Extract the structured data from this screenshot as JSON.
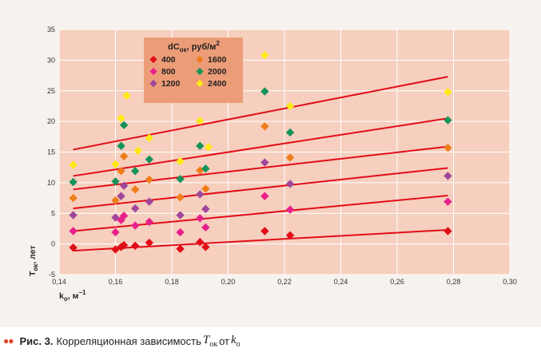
{
  "chart_data": {
    "type": "scatter",
    "title": "",
    "xlabel": "k",
    "xlabel_sub": "о",
    "xlabel_unit": ", м",
    "xlabel_sup": "−1",
    "ylabel": "Т",
    "ylabel_sub": "ок",
    "ylabel_unit": ", лет",
    "xlim": [
      0.14,
      0.3
    ],
    "ylim": [
      -5,
      35
    ],
    "xticks": [
      "0,14",
      "0,16",
      "0,18",
      "0,20",
      "0,22",
      "0,24",
      "0,26",
      "0,28",
      "0,30"
    ],
    "xtick_values": [
      0.14,
      0.16,
      0.18,
      0.2,
      0.22,
      0.24,
      0.26,
      0.28,
      0.3
    ],
    "yticks": [
      "-5",
      "0",
      "5",
      "10",
      "15",
      "20",
      "25",
      "30",
      "35"
    ],
    "ytick_values": [
      -5,
      0,
      5,
      10,
      15,
      20,
      25,
      30,
      35
    ],
    "grid": true,
    "legend_position": "top-left",
    "legend": {
      "title": "dC",
      "title_sub": "ок",
      "title_unit": ", руб/м",
      "title_sup": "2"
    },
    "series": [
      {
        "name": "400",
        "color": "#e10d17",
        "x": [
          0.145,
          0.16,
          0.162,
          0.163,
          0.167,
          0.172,
          0.183,
          0.19,
          0.192,
          0.213,
          0.222,
          0.278
        ],
        "y": [
          -0.6,
          -0.9,
          -0.5,
          -0.2,
          -0.3,
          0.2,
          -0.8,
          0.3,
          -0.5,
          2.1,
          1.4,
          2.1
        ],
        "trend": [
          -1.1,
          2.3
        ]
      },
      {
        "name": "800",
        "color": "#e8208c",
        "x": [
          0.145,
          0.16,
          0.162,
          0.163,
          0.167,
          0.172,
          0.183,
          0.19,
          0.192,
          0.213,
          0.222,
          0.278
        ],
        "y": [
          2.1,
          1.9,
          3.9,
          4.6,
          3.0,
          3.6,
          1.9,
          4.2,
          2.7,
          7.8,
          5.6,
          6.9
        ],
        "trend": [
          2.1,
          7.9
        ]
      },
      {
        "name": "1200",
        "color": "#a0469a",
        "x": [
          0.145,
          0.16,
          0.162,
          0.163,
          0.167,
          0.172,
          0.183,
          0.19,
          0.192,
          0.213,
          0.222,
          0.278
        ],
        "y": [
          4.7,
          4.3,
          7.8,
          9.5,
          5.8,
          6.9,
          4.7,
          8.1,
          5.7,
          13.3,
          9.8,
          11.1
        ],
        "trend": [
          5.8,
          12.4
        ]
      },
      {
        "name": "1600",
        "color": "#ef7d1a",
        "x": [
          0.145,
          0.16,
          0.162,
          0.163,
          0.167,
          0.172,
          0.183,
          0.19,
          0.192,
          0.213,
          0.222,
          0.278
        ],
        "y": [
          7.5,
          7.1,
          11.9,
          14.3,
          8.9,
          10.5,
          7.6,
          12.0,
          9.0,
          19.2,
          14.1,
          15.7
        ],
        "trend": [
          8.9,
          15.9
        ]
      },
      {
        "name": "2000",
        "color": "#16935a",
        "x": [
          0.145,
          0.16,
          0.162,
          0.163,
          0.167,
          0.172,
          0.183,
          0.19,
          0.192,
          0.213,
          0.222,
          0.278
        ],
        "y": [
          10.1,
          10.2,
          16.0,
          19.4,
          11.9,
          13.8,
          10.6,
          16.0,
          12.3,
          24.9,
          18.2,
          20.2
        ],
        "trend": [
          11.1,
          20.5
        ]
      },
      {
        "name": "2400",
        "color": "#ffe816",
        "x": [
          0.145,
          0.16,
          0.162,
          0.164,
          0.168,
          0.172,
          0.183,
          0.19,
          0.193,
          0.213,
          0.222,
          0.278
        ],
        "y": [
          12.9,
          13.0,
          20.5,
          24.2,
          15.2,
          17.3,
          13.5,
          20.1,
          15.8,
          30.8,
          22.5,
          24.8
        ],
        "trend": [
          15.4,
          27.3
        ]
      }
    ],
    "trend_color": "#e10d17"
  },
  "caption": {
    "prefix": "Рис. 3.",
    "text": "Корреляционная зависимость",
    "var1": "T",
    "var1_sub": "ок",
    "connector": "от",
    "var2": "k",
    "var2_sub": "о"
  },
  "colors": {
    "plot_background": "#f6cfbf",
    "legend_background": "#ec9c77",
    "grid": "#ffffff",
    "figure_background": "#f6f2ee",
    "caption_dots": "#e0462d"
  }
}
